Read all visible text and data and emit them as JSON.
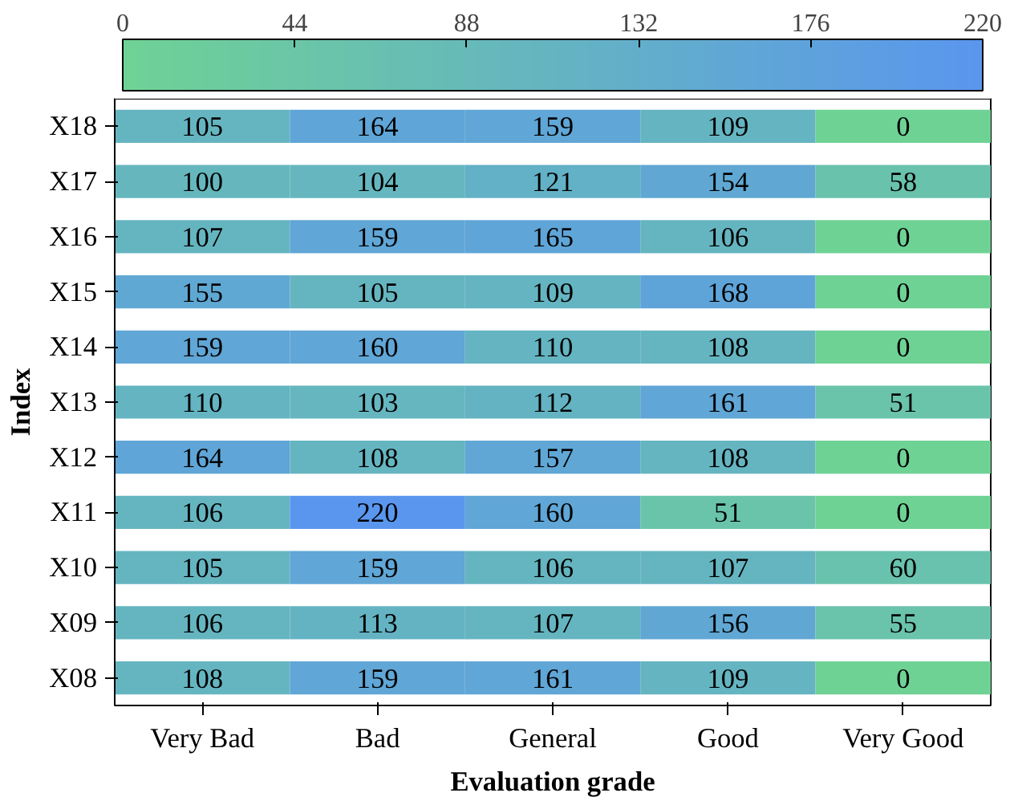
{
  "chart_data": {
    "type": "heatmap",
    "xlabel": "Evaluation grade",
    "ylabel": "Index",
    "categories": [
      "Very Bad",
      "Bad",
      "General",
      "Good",
      "Very Good"
    ],
    "y_categories": [
      "X18",
      "X17",
      "X16",
      "X15",
      "X14",
      "X13",
      "X12",
      "X11",
      "X10",
      "X09",
      "X08"
    ],
    "cells": [
      [
        105,
        164,
        159,
        109,
        0
      ],
      [
        100,
        104,
        121,
        154,
        58
      ],
      [
        107,
        159,
        165,
        106,
        0
      ],
      [
        155,
        105,
        109,
        168,
        0
      ],
      [
        159,
        160,
        110,
        108,
        0
      ],
      [
        110,
        103,
        112,
        161,
        51
      ],
      [
        164,
        108,
        157,
        108,
        0
      ],
      [
        106,
        220,
        160,
        51,
        0
      ],
      [
        105,
        159,
        106,
        107,
        60
      ],
      [
        106,
        113,
        107,
        156,
        55
      ],
      [
        108,
        159,
        161,
        109,
        0
      ]
    ],
    "data_labels": true,
    "colors": [
      "#6fd295",
      "#5a96ee"
    ],
    "clim": [
      0,
      220
    ],
    "cticks": [
      0,
      44,
      88,
      132,
      176,
      220
    ],
    "grid": false
  }
}
